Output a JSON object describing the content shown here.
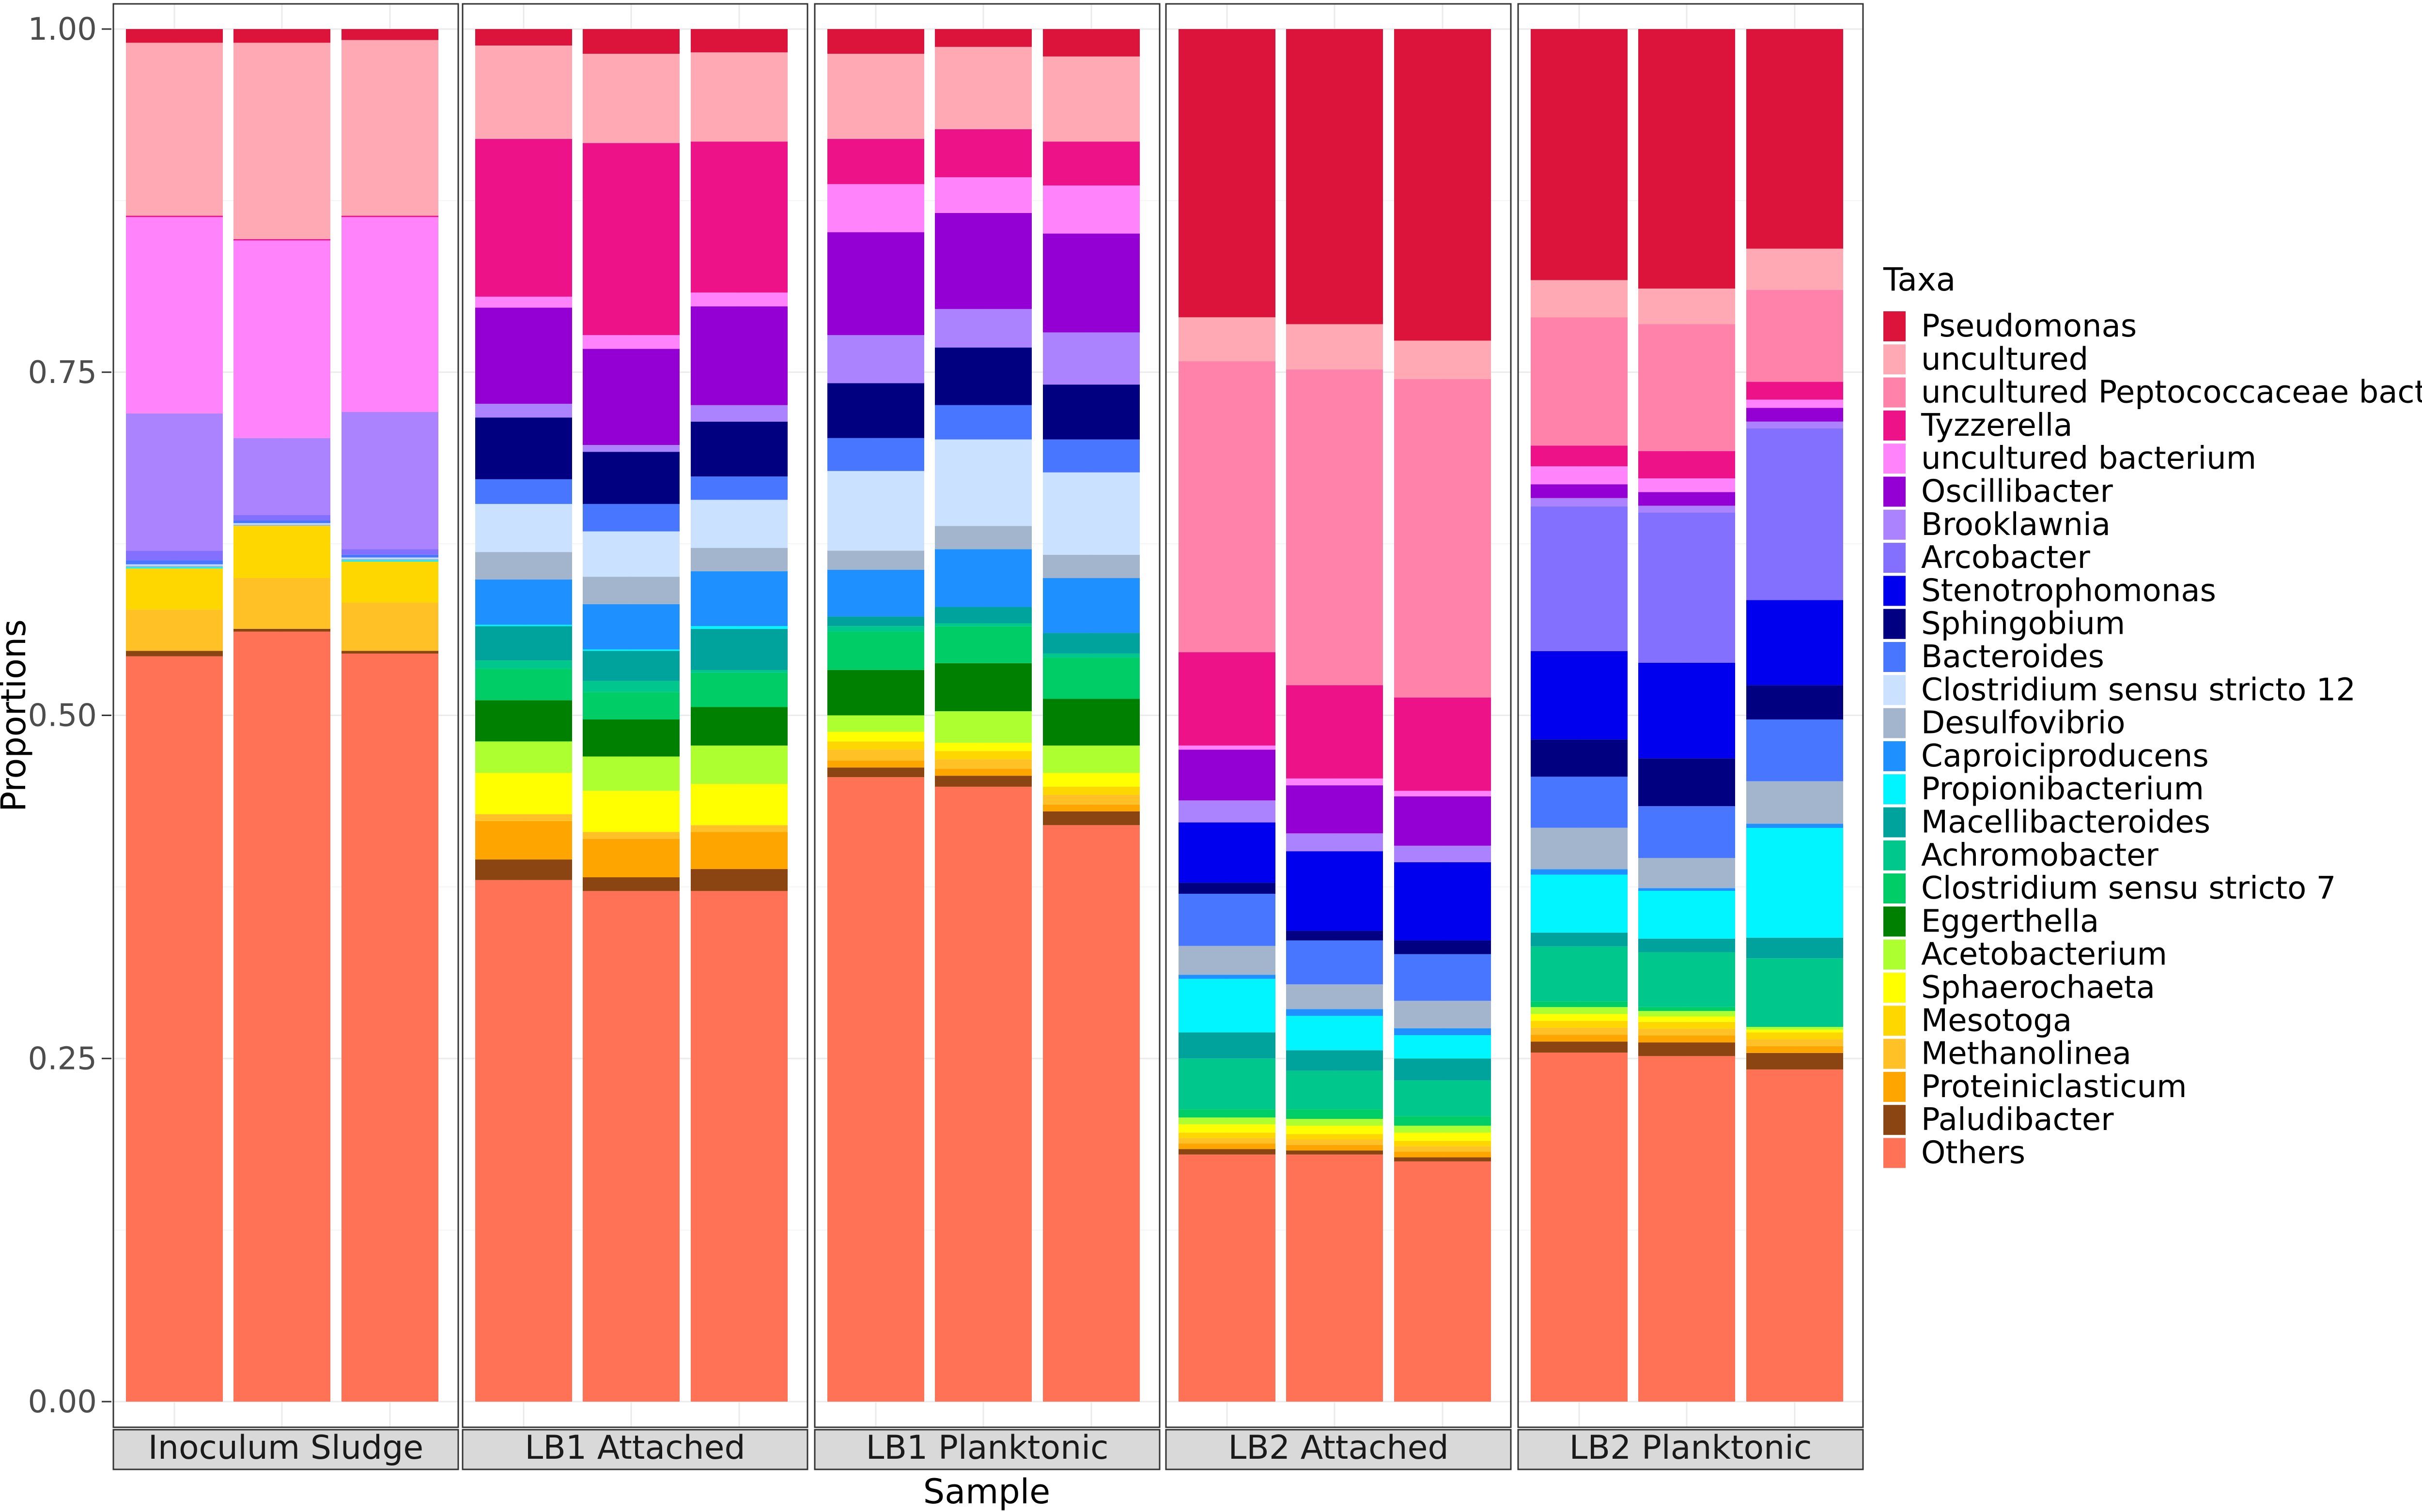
{
  "chart_data": {
    "type": "bar",
    "stacked": true,
    "xlabel": "Sample",
    "ylabel": "Proportions",
    "ylim": [
      0,
      1
    ],
    "yticks": [
      0,
      0.25,
      0.5,
      0.75,
      1
    ],
    "ytick_labels": [
      "0.00",
      "0.25",
      "0.50",
      "0.75",
      "1.00"
    ],
    "legend_title": "Taxa",
    "legend_position": "right",
    "taxa": [
      {
        "name": "Pseudomonas",
        "color": "#DC143C"
      },
      {
        "name": "uncultured",
        "color": "#FFA9B4"
      },
      {
        "name": "uncultured Peptococcaceae bacterium",
        "color": "#FF82AB"
      },
      {
        "name": "Tyzzerella",
        "color": "#EE1289"
      },
      {
        "name": "uncultured bacterium",
        "color": "#FF83FA"
      },
      {
        "name": "Oscillibacter",
        "color": "#9400D3"
      },
      {
        "name": "Brooklawnia",
        "color": "#AB82FF"
      },
      {
        "name": "Arcobacter",
        "color": "#8470FF"
      },
      {
        "name": "Stenotrophomonas",
        "color": "#0000EE"
      },
      {
        "name": "Sphingobium",
        "color": "#000080"
      },
      {
        "name": "Bacteroides",
        "color": "#4876FF"
      },
      {
        "name": "Clostridium sensu stricto 12",
        "color": "#CAE1FF"
      },
      {
        "name": "Desulfovibrio",
        "color": "#A2B5CD"
      },
      {
        "name": "Caproiciproducens",
        "color": "#1E90FF"
      },
      {
        "name": "Propionibacterium",
        "color": "#00F5FF"
      },
      {
        "name": "Macellibacteroides",
        "color": "#00A39B"
      },
      {
        "name": "Achromobacter",
        "color": "#00C78C"
      },
      {
        "name": "Clostridium sensu stricto 7",
        "color": "#00CD66"
      },
      {
        "name": "Eggerthella",
        "color": "#008000"
      },
      {
        "name": "Acetobacterium",
        "color": "#ADFF2F"
      },
      {
        "name": "Sphaerochaeta",
        "color": "#FFFF00"
      },
      {
        "name": "Mesotoga",
        "color": "#FFD700"
      },
      {
        "name": "Methanolinea",
        "color": "#FFC125"
      },
      {
        "name": "Proteiniclasticum",
        "color": "#FFA500"
      },
      {
        "name": "Paludibacter",
        "color": "#8B4513"
      },
      {
        "name": "Others",
        "color": "#FF7256"
      }
    ],
    "panels": [
      {
        "label": "Inoculum Sludge",
        "samples": [
          {
            "Others": 0.543,
            "Paludibacter": 0.004,
            "Proteiniclasticum": 0.0,
            "Methanolinea": 0.03,
            "Mesotoga": 0.03,
            "Sphaerochaeta": 0.0,
            "Acetobacterium": 0.0,
            "Eggerthella": 0.0,
            "Clostridium sensu stricto 7": 0.0,
            "Achromobacter": 0.0,
            "Macellibacteroides": 0.0,
            "Propionibacterium": 0.001,
            "Caproiciproducens": 0.0,
            "Desulfovibrio": 0.001,
            "Clostridium sensu stricto 12": 0.001,
            "Bacteroides": 0.003,
            "Sphingobium": 0.0,
            "Stenotrophomonas": 0.0,
            "Arcobacter": 0.007,
            "Brooklawnia": 0.1,
            "Oscillibacter": 0.0,
            "uncultured bacterium": 0.143,
            "Tyzzerella": 0.001,
            "uncultured Peptococcaceae bacterium": 0.0,
            "uncultured": 0.126,
            "Pseudomonas": 0.01
          },
          {
            "Others": 0.561,
            "Paludibacter": 0.002,
            "Proteiniclasticum": 0.0,
            "Methanolinea": 0.037,
            "Mesotoga": 0.038,
            "Sphaerochaeta": 0.0,
            "Acetobacterium": 0.0,
            "Eggerthella": 0.0,
            "Clostridium sensu stricto 7": 0.0,
            "Achromobacter": 0.0,
            "Macellibacteroides": 0.0,
            "Propionibacterium": 0.0,
            "Caproiciproducens": 0.0,
            "Desulfovibrio": 0.001,
            "Clostridium sensu stricto 12": 0.001,
            "Bacteroides": 0.002,
            "Sphingobium": 0.0,
            "Stenotrophomonas": 0.0,
            "Arcobacter": 0.004,
            "Brooklawnia": 0.056,
            "Oscillibacter": 0.0,
            "uncultured bacterium": 0.144,
            "Tyzzerella": 0.001,
            "uncultured Peptococcaceae bacterium": 0.0,
            "uncultured": 0.143,
            "Pseudomonas": 0.01
          },
          {
            "Others": 0.545,
            "Paludibacter": 0.002,
            "Proteiniclasticum": 0.0,
            "Methanolinea": 0.035,
            "Mesotoga": 0.03,
            "Sphaerochaeta": 0.0,
            "Acetobacterium": 0.0,
            "Eggerthella": 0.0,
            "Clostridium sensu stricto 7": 0.0,
            "Achromobacter": 0.0,
            "Macellibacteroides": 0.0,
            "Propionibacterium": 0.001,
            "Caproiciproducens": 0.0,
            "Desulfovibrio": 0.001,
            "Clostridium sensu stricto 12": 0.001,
            "Bacteroides": 0.002,
            "Sphingobium": 0.0,
            "Stenotrophomonas": 0.0,
            "Arcobacter": 0.004,
            "Brooklawnia": 0.1,
            "Oscillibacter": 0.0,
            "uncultured bacterium": 0.142,
            "Tyzzerella": 0.001,
            "uncultured Peptococcaceae bacterium": 0.0,
            "uncultured": 0.128,
            "Pseudomonas": 0.008
          }
        ]
      },
      {
        "label": "LB1 Attached",
        "samples": [
          {
            "Others": 0.38,
            "Paludibacter": 0.015,
            "Proteiniclasticum": 0.028,
            "Methanolinea": 0.005,
            "Mesotoga": 0.0,
            "Sphaerochaeta": 0.03,
            "Acetobacterium": 0.023,
            "Eggerthella": 0.03,
            "Clostridium sensu stricto 7": 0.023,
            "Achromobacter": 0.006,
            "Macellibacteroides": 0.025,
            "Propionibacterium": 0.001,
            "Caproiciproducens": 0.033,
            "Desulfovibrio": 0.02,
            "Clostridium sensu stricto 12": 0.035,
            "Bacteroides": 0.018,
            "Sphingobium": 0.045,
            "Stenotrophomonas": 0.0,
            "Arcobacter": 0.0,
            "Brooklawnia": 0.01,
            "Oscillibacter": 0.07,
            "uncultured bacterium": 0.008,
            "Tyzzerella": 0.115,
            "uncultured Peptococcaceae bacterium": 0.0,
            "uncultured": 0.068,
            "Pseudomonas": 0.012
          },
          {
            "Others": 0.372,
            "Paludibacter": 0.01,
            "Proteiniclasticum": 0.028,
            "Methanolinea": 0.005,
            "Mesotoga": 0.0,
            "Sphaerochaeta": 0.03,
            "Acetobacterium": 0.025,
            "Eggerthella": 0.027,
            "Clostridium sensu stricto 7": 0.02,
            "Achromobacter": 0.008,
            "Macellibacteroides": 0.022,
            "Propionibacterium": 0.001,
            "Caproiciproducens": 0.033,
            "Desulfovibrio": 0.02,
            "Clostridium sensu stricto 12": 0.033,
            "Bacteroides": 0.02,
            "Sphingobium": 0.038,
            "Stenotrophomonas": 0.0,
            "Arcobacter": 0.0,
            "Brooklawnia": 0.005,
            "Oscillibacter": 0.07,
            "uncultured bacterium": 0.01,
            "Tyzzerella": 0.14,
            "uncultured Peptococcaceae bacterium": 0.0,
            "uncultured": 0.065,
            "Pseudomonas": 0.018
          },
          {
            "Others": 0.372,
            "Paludibacter": 0.016,
            "Proteiniclasticum": 0.027,
            "Methanolinea": 0.005,
            "Mesotoga": 0.0,
            "Sphaerochaeta": 0.03,
            "Acetobacterium": 0.028,
            "Eggerthella": 0.028,
            "Clostridium sensu stricto 7": 0.025,
            "Achromobacter": 0.002,
            "Macellibacteroides": 0.03,
            "Propionibacterium": 0.002,
            "Caproiciproducens": 0.04,
            "Desulfovibrio": 0.017,
            "Clostridium sensu stricto 12": 0.035,
            "Bacteroides": 0.017,
            "Sphingobium": 0.04,
            "Stenotrophomonas": 0.0,
            "Arcobacter": 0.0,
            "Brooklawnia": 0.012,
            "Oscillibacter": 0.072,
            "uncultured bacterium": 0.01,
            "Tyzzerella": 0.11,
            "uncultured Peptococcaceae bacterium": 0.0,
            "uncultured": 0.065,
            "Pseudomonas": 0.017
          }
        ]
      },
      {
        "label": "LB1 Planktonic",
        "samples": [
          {
            "Others": 0.455,
            "Paludibacter": 0.007,
            "Proteiniclasticum": 0.005,
            "Methanolinea": 0.008,
            "Mesotoga": 0.006,
            "Sphaerochaeta": 0.007,
            "Acetobacterium": 0.012,
            "Eggerthella": 0.033,
            "Clostridium sensu stricto 7": 0.028,
            "Achromobacter": 0.004,
            "Macellibacteroides": 0.007,
            "Propionibacterium": 0.0,
            "Caproiciproducens": 0.034,
            "Desulfovibrio": 0.014,
            "Clostridium sensu stricto 12": 0.058,
            "Bacteroides": 0.024,
            "Sphingobium": 0.04,
            "Stenotrophomonas": 0.0,
            "Arcobacter": 0.0,
            "Brooklawnia": 0.035,
            "Oscillibacter": 0.075,
            "uncultured bacterium": 0.035,
            "Tyzzerella": 0.033,
            "uncultured Peptococcaceae bacterium": 0.0,
            "uncultured": 0.062,
            "Pseudomonas": 0.018
          },
          {
            "Others": 0.448,
            "Paludibacter": 0.008,
            "Proteiniclasticum": 0.005,
            "Methanolinea": 0.007,
            "Mesotoga": 0.006,
            "Sphaerochaeta": 0.006,
            "Acetobacterium": 0.023,
            "Eggerthella": 0.035,
            "Clostridium sensu stricto 7": 0.027,
            "Achromobacter": 0.002,
            "Macellibacteroides": 0.012,
            "Propionibacterium": 0.0,
            "Caproiciproducens": 0.042,
            "Desulfovibrio": 0.017,
            "Clostridium sensu stricto 12": 0.063,
            "Bacteroides": 0.025,
            "Sphingobium": 0.042,
            "Stenotrophomonas": 0.0,
            "Arcobacter": 0.0,
            "Brooklawnia": 0.028,
            "Oscillibacter": 0.07,
            "uncultured bacterium": 0.026,
            "Tyzzerella": 0.035,
            "uncultured Peptococcaceae bacterium": 0.0,
            "uncultured": 0.06,
            "Pseudomonas": 0.013
          },
          {
            "Others": 0.42,
            "Paludibacter": 0.01,
            "Proteiniclasticum": 0.005,
            "Methanolinea": 0.007,
            "Mesotoga": 0.006,
            "Sphaerochaeta": 0.01,
            "Acetobacterium": 0.02,
            "Eggerthella": 0.034,
            "Clostridium sensu stricto 7": 0.03,
            "Achromobacter": 0.003,
            "Macellibacteroides": 0.015,
            "Propionibacterium": 0.0,
            "Caproiciproducens": 0.04,
            "Desulfovibrio": 0.017,
            "Clostridium sensu stricto 12": 0.06,
            "Bacteroides": 0.024,
            "Sphingobium": 0.04,
            "Stenotrophomonas": 0.0,
            "Arcobacter": 0.0,
            "Brooklawnia": 0.038,
            "Oscillibacter": 0.072,
            "uncultured bacterium": 0.035,
            "Tyzzerella": 0.032,
            "uncultured Peptococcaceae bacterium": 0.0,
            "uncultured": 0.062,
            "Pseudomonas": 0.02
          }
        ]
      },
      {
        "label": "LB2 Attached",
        "samples": [
          {
            "Others": 0.18,
            "Paludibacter": 0.004,
            "Proteiniclasticum": 0.004,
            "Methanolinea": 0.004,
            "Mesotoga": 0.004,
            "Sphaerochaeta": 0.006,
            "Acetobacterium": 0.005,
            "Eggerthella": 0.0,
            "Clostridium sensu stricto 7": 0.006,
            "Achromobacter": 0.037,
            "Macellibacteroides": 0.019,
            "Propionibacterium": 0.039,
            "Caproiciproducens": 0.003,
            "Desulfovibrio": 0.021,
            "Clostridium sensu stricto 12": 0.0,
            "Bacteroides": 0.038,
            "Sphingobium": 0.008,
            "Stenotrophomonas": 0.044,
            "Arcobacter": 0.0,
            "Brooklawnia": 0.016,
            "Oscillibacter": 0.037,
            "uncultured bacterium": 0.003,
            "Tyzzerella": 0.068,
            "uncultured Peptococcaceae bacterium": 0.212,
            "uncultured": 0.032,
            "Pseudomonas": 0.21
          },
          {
            "Others": 0.18,
            "Paludibacter": 0.003,
            "Proteiniclasticum": 0.004,
            "Methanolinea": 0.004,
            "Mesotoga": 0.004,
            "Sphaerochaeta": 0.006,
            "Acetobacterium": 0.005,
            "Eggerthella": 0.0,
            "Clostridium sensu stricto 7": 0.007,
            "Achromobacter": 0.028,
            "Macellibacteroides": 0.015,
            "Propionibacterium": 0.025,
            "Caproiciproducens": 0.005,
            "Desulfovibrio": 0.018,
            "Clostridium sensu stricto 12": 0.0,
            "Bacteroides": 0.032,
            "Sphingobium": 0.007,
            "Stenotrophomonas": 0.058,
            "Arcobacter": 0.0,
            "Brooklawnia": 0.013,
            "Oscillibacter": 0.035,
            "uncultured bacterium": 0.005,
            "Tyzzerella": 0.068,
            "uncultured Peptococcaceae bacterium": 0.23,
            "uncultured": 0.033,
            "Pseudomonas": 0.215
          },
          {
            "Others": 0.175,
            "Paludibacter": 0.003,
            "Proteiniclasticum": 0.004,
            "Methanolinea": 0.004,
            "Mesotoga": 0.004,
            "Sphaerochaeta": 0.006,
            "Acetobacterium": 0.005,
            "Eggerthella": 0.0,
            "Clostridium sensu stricto 7": 0.007,
            "Achromobacter": 0.026,
            "Macellibacteroides": 0.016,
            "Propionibacterium": 0.017,
            "Caproiciproducens": 0.005,
            "Desulfovibrio": 0.02,
            "Clostridium sensu stricto 12": 0.0,
            "Bacteroides": 0.034,
            "Sphingobium": 0.01,
            "Stenotrophomonas": 0.057,
            "Arcobacter": 0.0,
            "Brooklawnia": 0.012,
            "Oscillibacter": 0.036,
            "uncultured bacterium": 0.004,
            "Tyzzerella": 0.068,
            "uncultured Peptococcaceae bacterium": 0.232,
            "uncultured": 0.028,
            "Pseudomonas": 0.227
          }
        ]
      },
      {
        "label": "LB2 Planktonic",
        "samples": [
          {
            "Others": 0.253,
            "Paludibacter": 0.008,
            "Proteiniclasticum": 0.005,
            "Methanolinea": 0.005,
            "Mesotoga": 0.005,
            "Sphaerochaeta": 0.005,
            "Acetobacterium": 0.005,
            "Eggerthella": 0.0,
            "Clostridium sensu stricto 7": 0.004,
            "Achromobacter": 0.04,
            "Macellibacteroides": 0.01,
            "Propionibacterium": 0.042,
            "Caproiciproducens": 0.004,
            "Desulfovibrio": 0.03,
            "Clostridium sensu stricto 12": 0.0,
            "Bacteroides": 0.037,
            "Sphingobium": 0.027,
            "Stenotrophomonas": 0.064,
            "Arcobacter": 0.105,
            "Brooklawnia": 0.006,
            "Oscillibacter": 0.01,
            "uncultured bacterium": 0.013,
            "Tyzzerella": 0.015,
            "uncultured Peptococcaceae bacterium": 0.093,
            "uncultured": 0.027,
            "Pseudomonas": 0.182
          },
          {
            "Others": 0.253,
            "Paludibacter": 0.01,
            "Proteiniclasticum": 0.005,
            "Methanolinea": 0.005,
            "Mesotoga": 0.005,
            "Sphaerochaeta": 0.004,
            "Acetobacterium": 0.004,
            "Eggerthella": 0.0,
            "Clostridium sensu stricto 7": 0.003,
            "Achromobacter": 0.04,
            "Macellibacteroides": 0.01,
            "Propionibacterium": 0.035,
            "Caproiciproducens": 0.002,
            "Desulfovibrio": 0.022,
            "Clostridium sensu stricto 12": 0.0,
            "Bacteroides": 0.038,
            "Sphingobium": 0.035,
            "Stenotrophomonas": 0.07,
            "Arcobacter": 0.11,
            "Brooklawnia": 0.005,
            "Oscillibacter": 0.01,
            "uncultured bacterium": 0.01,
            "Tyzzerella": 0.02,
            "uncultured Peptococcaceae bacterium": 0.093,
            "uncultured": 0.026,
            "Pseudomonas": 0.19
          },
          {
            "Others": 0.242,
            "Paludibacter": 0.012,
            "Proteiniclasticum": 0.005,
            "Methanolinea": 0.005,
            "Mesotoga": 0.005,
            "Sphaerochaeta": 0.002,
            "Acetobacterium": 0.002,
            "Eggerthella": 0.0,
            "Clostridium sensu stricto 7": 0.0,
            "Achromobacter": 0.05,
            "Macellibacteroides": 0.015,
            "Propionibacterium": 0.08,
            "Caproiciproducens": 0.003,
            "Desulfovibrio": 0.031,
            "Clostridium sensu stricto 12": 0.0,
            "Bacteroides": 0.045,
            "Sphingobium": 0.025,
            "Stenotrophomonas": 0.062,
            "Arcobacter": 0.125,
            "Brooklawnia": 0.005,
            "Oscillibacter": 0.01,
            "uncultured bacterium": 0.006,
            "Tyzzerella": 0.013,
            "uncultured Peptococcaceae bacterium": 0.067,
            "uncultured": 0.03,
            "Pseudomonas": 0.16
          }
        ]
      }
    ]
  }
}
